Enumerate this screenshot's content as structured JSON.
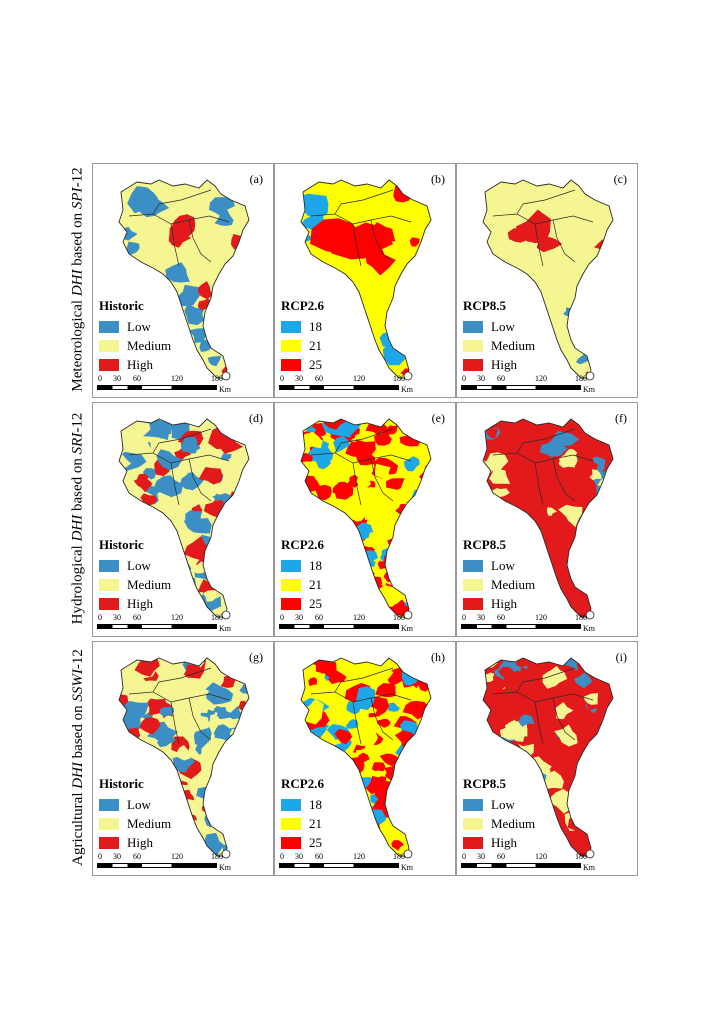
{
  "colors": {
    "low": "#3b8fc4",
    "medium": "#f5f591",
    "high": "#e31a1c",
    "rcp_low": "#1ea7e8",
    "rcp_mid": "#ffff00",
    "rcp_high": "#ff0000",
    "boundary": "#2a2a2a"
  },
  "rows": [
    {
      "pre": "Meteorological ",
      "em": "DHI",
      "mid": " based on ",
      "em2": "SPI",
      "post": "-12"
    },
    {
      "pre": "Hydrological ",
      "em": "DHI",
      "mid": " based on ",
      "em2": "SRI",
      "post": "-12"
    },
    {
      "pre": "Agricultural ",
      "em": "DHI",
      "mid": " based on ",
      "em2": "SSWI",
      "post": "-12"
    }
  ],
  "scalebar": {
    "ticks": [
      "0",
      "30",
      "60",
      "120",
      "180"
    ],
    "unit": "Km"
  },
  "panels": [
    {
      "label": "(a)",
      "title": "Historic",
      "legend": [
        "Low",
        "Medium",
        "High"
      ],
      "scheme": "class",
      "pattern": "a"
    },
    {
      "label": "(b)",
      "title": "RCP2.6",
      "legend": [
        "18",
        "21",
        "25"
      ],
      "scheme": "rcp",
      "pattern": "b"
    },
    {
      "label": "(c)",
      "title": "RCP8.5",
      "legend": [
        "Low",
        "Medium",
        "High"
      ],
      "scheme": "class",
      "pattern": "c"
    },
    {
      "label": "(d)",
      "title": "Historic",
      "legend": [
        "Low",
        "Medium",
        "High"
      ],
      "scheme": "class",
      "pattern": "d"
    },
    {
      "label": "(e)",
      "title": "RCP2.6",
      "legend": [
        "18",
        "21",
        "25"
      ],
      "scheme": "rcp",
      "pattern": "e"
    },
    {
      "label": "(f)",
      "title": "RCP8.5",
      "legend": [
        "Low",
        "Medium",
        "High"
      ],
      "scheme": "class",
      "pattern": "f"
    },
    {
      "label": "(g)",
      "title": "Historic",
      "legend": [
        "Low",
        "Medium",
        "High"
      ],
      "scheme": "class",
      "pattern": "g"
    },
    {
      "label": "(h)",
      "title": "RCP2.6",
      "legend": [
        "18",
        "21",
        "25"
      ],
      "scheme": "rcp",
      "pattern": "h"
    },
    {
      "label": "(i)",
      "title": "RCP8.5",
      "legend": [
        "Low",
        "Medium",
        "High"
      ],
      "scheme": "class",
      "pattern": "i"
    }
  ]
}
